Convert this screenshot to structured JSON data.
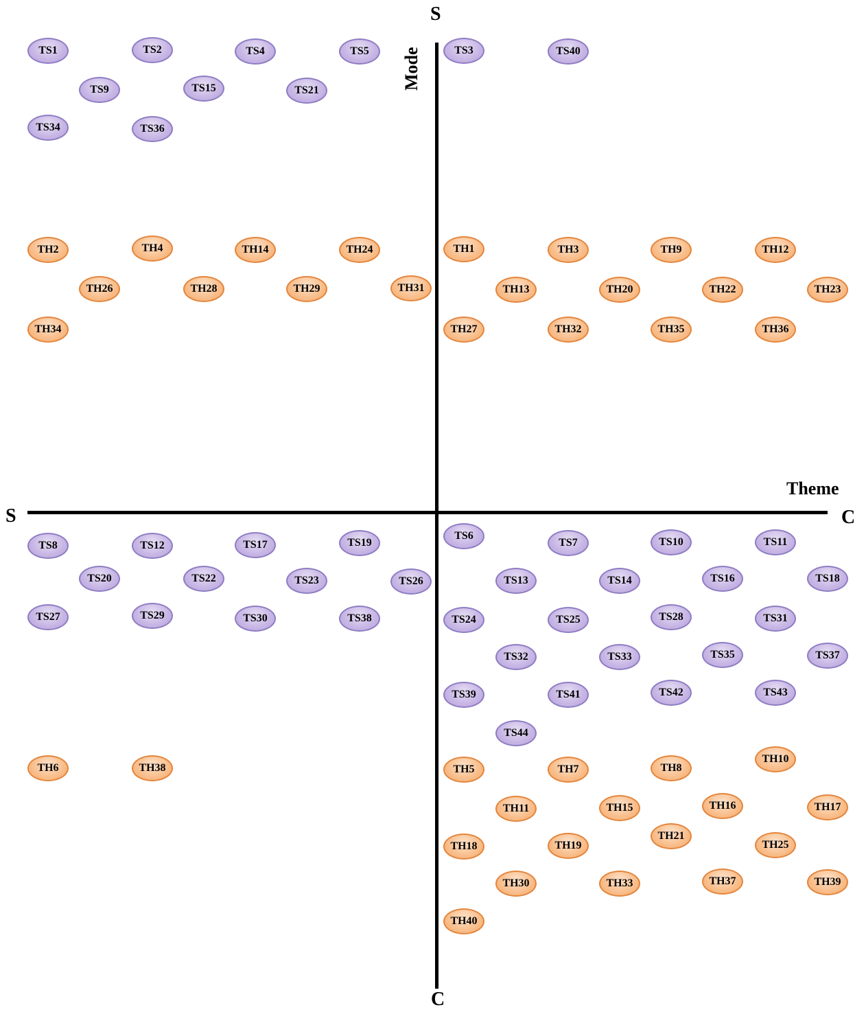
{
  "axes": {
    "vertical_top": "S",
    "vertical_bottom": "C",
    "vertical_name": "Mode",
    "horizontal_left": "S",
    "horizontal_right": "C",
    "horizontal_name": "Theme"
  },
  "colors": {
    "ts_fill": "#c9b8e6",
    "ts_border": "#8e7cc3",
    "th_fill": "#f9c08f",
    "th_border": "#e3853c",
    "axis": "#000000"
  },
  "quadrants": {
    "top_left": {
      "ts": [
        "TS1",
        "TS2",
        "TS4",
        "TS5",
        "TS9",
        "TS15",
        "TS21",
        "TS34",
        "TS36"
      ],
      "th": [
        "TH2",
        "TH4",
        "TH14",
        "TH24",
        "TH26",
        "TH28",
        "TH29",
        "TH31",
        "TH34"
      ]
    },
    "top_right": {
      "ts": [
        "TS3",
        "TS40"
      ],
      "th": [
        "TH1",
        "TH3",
        "TH9",
        "TH12",
        "TH13",
        "TH20",
        "TH22",
        "TH23",
        "TH27",
        "TH32",
        "TH35",
        "TH36"
      ]
    },
    "bottom_left": {
      "ts": [
        "TS8",
        "TS12",
        "TS17",
        "TS19",
        "TS20",
        "TS22",
        "TS23",
        "TS26",
        "TS27",
        "TS29",
        "TS30",
        "TS38"
      ],
      "th": [
        "TH6",
        "TH38"
      ]
    },
    "bottom_right": {
      "ts": [
        "TS6",
        "TS7",
        "TS10",
        "TS11",
        "TS13",
        "TS14",
        "TS16",
        "TS18",
        "TS24",
        "TS25",
        "TS28",
        "TS31",
        "TS32",
        "TS33",
        "TS35",
        "TS37",
        "TS39",
        "TS41",
        "TS42",
        "TS43",
        "TS44"
      ],
      "th": [
        "TH5",
        "TH7",
        "TH8",
        "TH10",
        "TH11",
        "TH15",
        "TH16",
        "TH17",
        "TH18",
        "TH19",
        "TH21",
        "TH25",
        "TH30",
        "TH33",
        "TH37",
        "TH39",
        "TH40"
      ]
    }
  }
}
